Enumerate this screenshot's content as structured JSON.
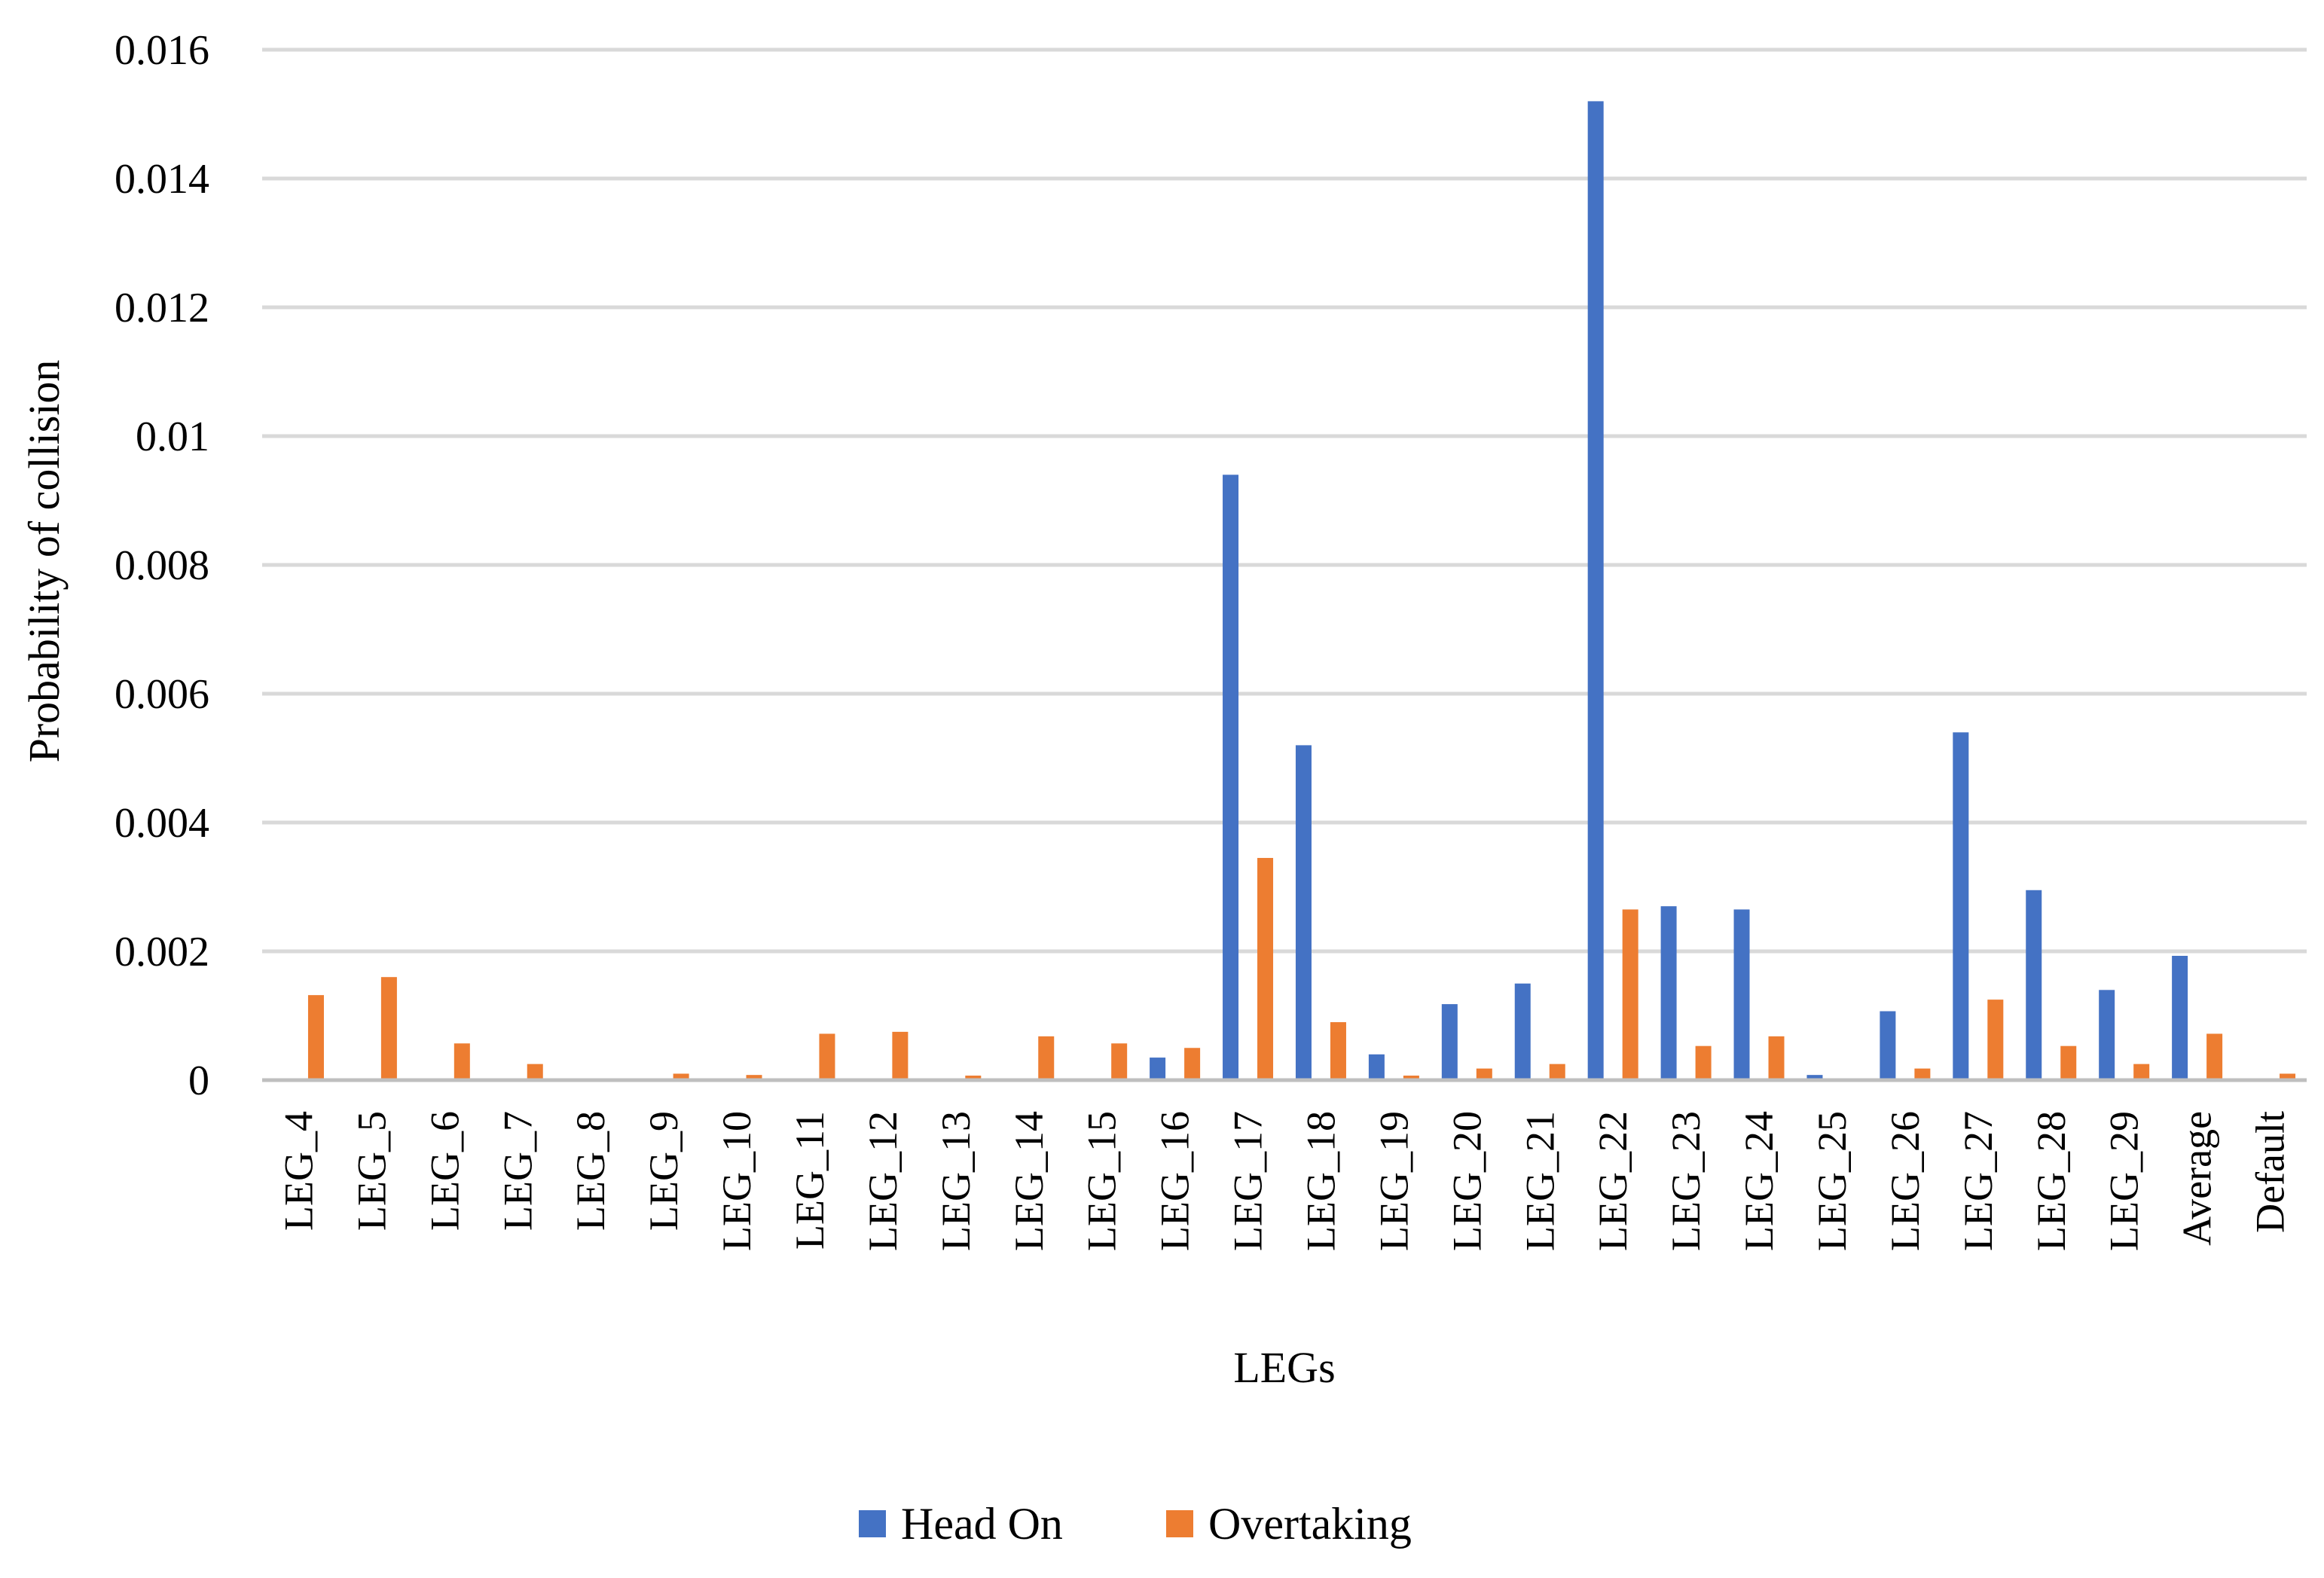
{
  "chart_data": {
    "type": "bar",
    "title": "",
    "xlabel": "LEGs",
    "ylabel": "Probability of collision",
    "ylim": [
      0,
      0.016
    ],
    "yticks": [
      "0",
      "0.002",
      "0.004",
      "0.006",
      "0.008",
      "0.01",
      "0.012",
      "0.014",
      "0.016"
    ],
    "grid": true,
    "legend_position": "bottom",
    "categories": [
      "LEG_4",
      "LEG_5",
      "LEG_6",
      "LEG_7",
      "LEG_8",
      "LEG_9",
      "LEG_10",
      "LEG_11",
      "LEG_12",
      "LEG_13",
      "LEG_14",
      "LEG_15",
      "LEG_16",
      "LEG_17",
      "LEG_18",
      "LEG_19",
      "LEG_20",
      "LEG_21",
      "LEG_22",
      "LEG_23",
      "LEG_24",
      "LEG_25",
      "LEG_26",
      "LEG_27",
      "LEG_28",
      "LEG_29",
      "Average",
      "Default"
    ],
    "series": [
      {
        "name": "Head On",
        "color": "#4472c4",
        "values": [
          0,
          0,
          0,
          0,
          0,
          0,
          0,
          0,
          0,
          0,
          0,
          0,
          0.00035,
          0.0094,
          0.0052,
          0.0004,
          0.00118,
          0.0015,
          0.0152,
          0.0027,
          0.00265,
          8e-05,
          0.00107,
          0.0054,
          0.00295,
          0.0014,
          0.00193,
          0
        ]
      },
      {
        "name": "Overtaking",
        "color": "#ed7d31",
        "values": [
          0.00132,
          0.0016,
          0.00057,
          0.00025,
          0,
          0.0001,
          8e-05,
          0.00072,
          0.00075,
          7e-05,
          0.00068,
          0.00057,
          0.0005,
          0.00345,
          0.0009,
          7e-05,
          0.00018,
          0.00025,
          0.00265,
          0.00053,
          0.00068,
          0,
          0.00018,
          0.00125,
          0.00053,
          0.00025,
          0.00072,
          0.0001
        ]
      }
    ]
  }
}
